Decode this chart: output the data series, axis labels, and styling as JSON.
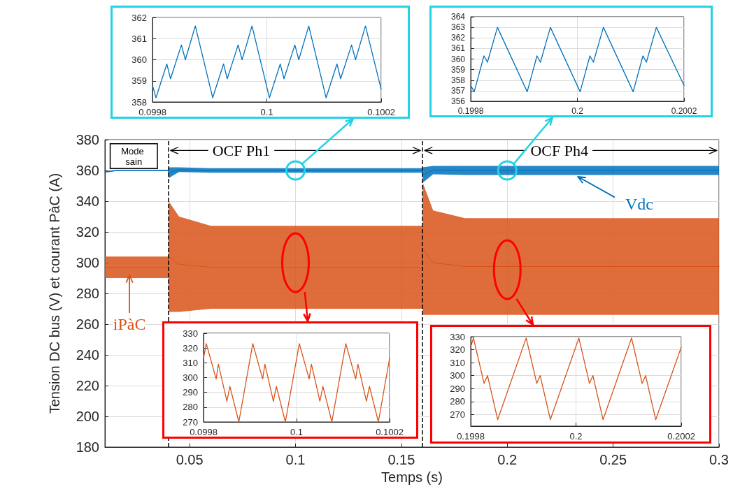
{
  "chart_data": [
    {
      "type": "line",
      "xlabel": "Temps (s)",
      "ylabel": "Tension DC bus (V) et courant PàC (A)",
      "xlim": [
        0.01,
        0.3
      ],
      "xticks": [
        0.05,
        0.1,
        0.15,
        0.2,
        0.25,
        0.3
      ],
      "ylim": [
        180,
        380
      ],
      "yticks": [
        180,
        200,
        220,
        240,
        260,
        280,
        300,
        320,
        340,
        360,
        380
      ],
      "grid": true,
      "marker": "none",
      "series": [
        {
          "name": "Vdc",
          "color": "#0072bd",
          "x": [
            0.01,
            0.015,
            0.02,
            0.04,
            0.0401,
            0.045,
            0.06,
            0.16,
            0.1601,
            0.165,
            0.18,
            0.3
          ],
          "values": [
            359,
            359.9,
            360.1,
            360.1,
            358.5,
            360.5,
            360,
            360,
            357,
            360.3,
            360,
            360
          ],
          "lower": [
            358.5,
            359.5,
            359.7,
            359.7,
            355,
            359,
            358.5,
            358.5,
            352,
            357.5,
            357,
            357
          ],
          "upper": [
            359.5,
            360.3,
            360.5,
            360.5,
            362,
            362,
            361.5,
            361.5,
            362,
            363,
            363,
            363
          ]
        },
        {
          "name": "iPàC",
          "color": "#d95319",
          "x": [
            0.01,
            0.04,
            0.0401,
            0.045,
            0.06,
            0.16,
            0.1601,
            0.165,
            0.18,
            0.3
          ],
          "values": [
            297,
            297,
            304,
            299,
            297,
            297,
            309,
            300,
            297.5,
            297.5
          ],
          "lower": [
            290,
            290,
            268,
            268,
            270,
            270,
            266,
            266,
            266,
            266
          ],
          "upper": [
            304,
            304,
            340,
            330,
            324,
            324,
            352,
            334,
            329,
            329
          ]
        }
      ],
      "ref_lines": [
        {
          "axis": "x",
          "value": 0.04,
          "color": "#000000",
          "line_style": "dashed"
        },
        {
          "axis": "x",
          "value": 0.16,
          "color": "#000000",
          "line_style": "dashed"
        }
      ],
      "annotations": [
        "Mode sain",
        {
          "text": "OCF Ph1",
          "x": 0.04,
          "y": 373
        },
        {
          "text": "OCF Ph4",
          "x": 0.16,
          "y": 373
        }
      ]
    },
    {
      "type": "line",
      "xlim": [
        0.0998,
        0.1002
      ],
      "xticks": [
        0.0998,
        0.1,
        0.1002
      ],
      "ylim": [
        358,
        362
      ],
      "yticks": [
        358,
        359,
        360,
        361,
        362
      ],
      "grid": true,
      "marker": "none",
      "series": [
        {
          "color": "#0072bd",
          "x": [
            0.0998,
            0.0998061,
            0.0998251,
            0.0998316,
            0.0998506,
            0.0998575,
            0.0998749,
            0.0999053,
            0.0999243,
            0.0999308,
            0.0999498,
            0.0999567,
            0.0999741,
            0.1000045,
            0.1000235,
            0.10003,
            0.100049,
            0.1000559,
            0.1000733,
            0.1001036,
            0.1001227,
            0.1001291,
            0.1001482,
            0.1001551,
            0.1001725,
            0.1002
          ],
          "values": [
            358.8,
            358.2,
            359.8,
            359.1,
            360.7,
            360,
            361.6,
            358.2,
            359.8,
            359.1,
            360.7,
            360,
            361.6,
            358.2,
            359.8,
            359.1,
            360.7,
            360,
            361.6,
            358.2,
            359.8,
            359.1,
            360.7,
            360,
            361.6,
            358.6
          ]
        }
      ]
    },
    {
      "type": "line",
      "xlim": [
        0.1998,
        0.2002
      ],
      "xticks": [
        0.1998,
        0.2,
        0.2002
      ],
      "ylim": [
        356,
        364
      ],
      "yticks": [
        356,
        357,
        358,
        359,
        360,
        361,
        362,
        363,
        364
      ],
      "grid": true,
      "marker": "none",
      "series": [
        {
          "color": "#0072bd",
          "x": [
            0.1998,
            0.1998065,
            0.1998248,
            0.1998314,
            0.1998501,
            0.1999059,
            0.1999242,
            0.1999307,
            0.1999494,
            0.2000052,
            0.2000235,
            0.20003,
            0.2000488,
            0.2001046,
            0.2001229,
            0.2001294,
            0.2001481,
            0.2002
          ],
          "values": [
            357.5,
            356.9,
            360.3,
            359.7,
            363,
            356.9,
            360.3,
            359.7,
            363,
            356.9,
            360.3,
            359.7,
            363,
            356.9,
            360.3,
            359.7,
            363,
            357.5
          ]
        }
      ]
    },
    {
      "type": "line",
      "xlim": [
        0.0998,
        0.1002
      ],
      "xticks": [
        0.0998,
        0.1,
        0.1002
      ],
      "ylim": [
        270,
        330
      ],
      "yticks": [
        270,
        280,
        290,
        300,
        310,
        320,
        330
      ],
      "grid": true,
      "marker": "none",
      "series": [
        {
          "color": "#d95319",
          "x": [
            0.0998,
            0.0998059,
            0.0998271,
            0.099832,
            0.0998502,
            0.0998567,
            0.0998759,
            0.0999059,
            0.0999271,
            0.099932,
            0.0999502,
            0.0999566,
            0.0999759,
            0.1000059,
            0.1000271,
            0.100032,
            0.1000502,
            0.1000567,
            0.1000759,
            0.1001059,
            0.1001271,
            0.100132,
            0.1001502,
            0.1001567,
            0.1001759,
            0.1002
          ],
          "values": [
            313,
            323,
            299,
            309,
            284,
            294,
            270,
            323,
            299,
            309,
            284,
            294,
            270,
            323,
            299,
            309,
            284,
            294,
            270,
            323,
            299,
            309,
            284,
            294,
            270,
            313
          ]
        }
      ]
    },
    {
      "type": "line",
      "xlim": [
        0.1998,
        0.2002
      ],
      "xticks": [
        0.1998,
        0.2,
        0.2002
      ],
      "ylim": [
        261,
        330
      ],
      "yticks": [
        270,
        280,
        290,
        300,
        310,
        320,
        330
      ],
      "grid": true,
      "marker": "none",
      "series": [
        {
          "color": "#d95319",
          "x": [
            0.1998,
            0.1998052,
            0.1998254,
            0.1998319,
            0.1998512,
            0.1999054,
            0.1999255,
            0.199932,
            0.1999513,
            0.2000055,
            0.2000256,
            0.2000322,
            0.2000514,
            0.2001056,
            0.2001257,
            0.2001323,
            0.2001515,
            0.2002
          ],
          "values": [
            322,
            329,
            294,
            300,
            266,
            329,
            294,
            300,
            266,
            329,
            294,
            300,
            266,
            329,
            294,
            300,
            266,
            322
          ]
        }
      ]
    }
  ]
}
